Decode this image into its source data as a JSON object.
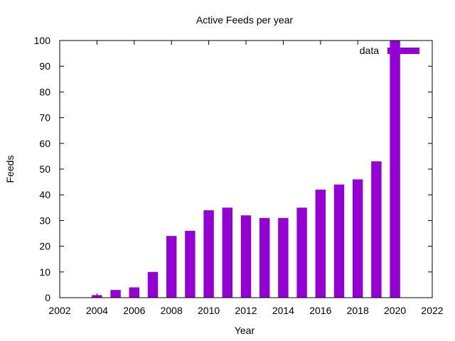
{
  "chart_data": {
    "type": "bar",
    "title": "Active Feeds per year",
    "xlabel": "Year",
    "ylabel": "Feeds",
    "xlim": [
      2002,
      2022
    ],
    "ylim": [
      0,
      100
    ],
    "xticks": [
      2002,
      2004,
      2006,
      2008,
      2010,
      2012,
      2014,
      2016,
      2018,
      2020,
      2022
    ],
    "yticks": [
      0,
      10,
      20,
      30,
      40,
      50,
      60,
      70,
      80,
      90,
      100
    ],
    "grid": false,
    "legend_position": "top-right",
    "color": "#9400d3",
    "series": [
      {
        "name": "data",
        "x": [
          2004,
          2005,
          2006,
          2007,
          2008,
          2009,
          2010,
          2011,
          2012,
          2013,
          2014,
          2015,
          2016,
          2017,
          2018,
          2019,
          2020
        ],
        "values": [
          1,
          3,
          4,
          10,
          24,
          26,
          34,
          35,
          32,
          31,
          31,
          35,
          42,
          44,
          46,
          53,
          100
        ]
      }
    ]
  }
}
